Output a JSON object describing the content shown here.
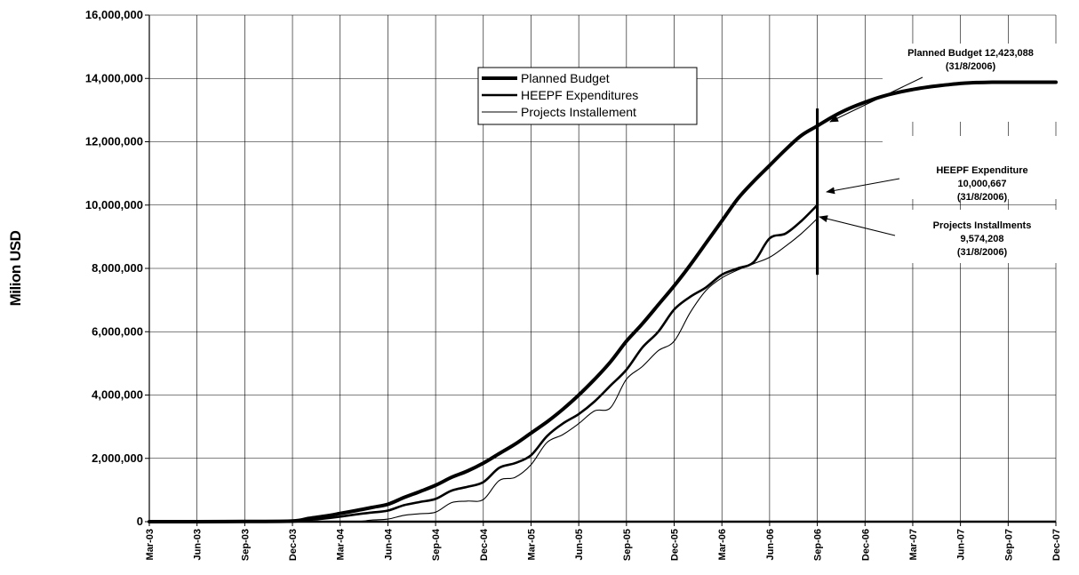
{
  "chart_data": {
    "type": "line",
    "title": "",
    "xlabel": "",
    "ylabel": "Milion USD",
    "ylim": [
      0,
      16000000
    ],
    "yticks": [
      "0",
      "2,000,000",
      "4,000,000",
      "6,000,000",
      "8,000,000",
      "10,000,000",
      "12,000,000",
      "14,000,000",
      "16,000,000"
    ],
    "x_tick_labels": [
      "Mar-03",
      "Jun-03",
      "Sep-03",
      "Dec-03",
      "Mar-04",
      "Jun-04",
      "Sep-04",
      "Dec-04",
      "Mar-05",
      "Jun-05",
      "Sep-05",
      "Dec-05",
      "Mar-06",
      "Jun-06",
      "Sep-06",
      "Dec-06",
      "Mar-07",
      "Jun-07",
      "Sep-07",
      "Dec-07"
    ],
    "grid": true,
    "legend_position": "top-center",
    "series": [
      {
        "name": "Planned Budget",
        "color": "#000000",
        "style": "thick",
        "points": [
          [
            "2003-03",
            0
          ],
          [
            "2003-06",
            0
          ],
          [
            "2003-09",
            5000
          ],
          [
            "2003-12",
            20000
          ],
          [
            "2004-01",
            100000
          ],
          [
            "2004-02",
            170000
          ],
          [
            "2004-03",
            260000
          ],
          [
            "2004-04",
            350000
          ],
          [
            "2004-05",
            450000
          ],
          [
            "2004-06",
            550000
          ],
          [
            "2004-07",
            760000
          ],
          [
            "2004-08",
            950000
          ],
          [
            "2004-09",
            1150000
          ],
          [
            "2004-10",
            1400000
          ],
          [
            "2004-11",
            1600000
          ],
          [
            "2004-12",
            1850000
          ],
          [
            "2005-01",
            2150000
          ],
          [
            "2005-02",
            2450000
          ],
          [
            "2005-03",
            2800000
          ],
          [
            "2005-04",
            3150000
          ],
          [
            "2005-05",
            3550000
          ],
          [
            "2005-06",
            4000000
          ],
          [
            "2005-07",
            4500000
          ],
          [
            "2005-08",
            5050000
          ],
          [
            "2005-09",
            5700000
          ],
          [
            "2005-10",
            6250000
          ],
          [
            "2005-11",
            6850000
          ],
          [
            "2005-12",
            7450000
          ],
          [
            "2006-01",
            8100000
          ],
          [
            "2006-02",
            8800000
          ],
          [
            "2006-03",
            9500000
          ],
          [
            "2006-04",
            10200000
          ],
          [
            "2006-05",
            10750000
          ],
          [
            "2006-06",
            11250000
          ],
          [
            "2006-07",
            11750000
          ],
          [
            "2006-08",
            12200000
          ],
          [
            "2006-09",
            12500000
          ],
          [
            "2006-10",
            12800000
          ],
          [
            "2006-11",
            13050000
          ],
          [
            "2006-12",
            13250000
          ],
          [
            "2007-01",
            13420000
          ],
          [
            "2007-02",
            13550000
          ],
          [
            "2007-03",
            13650000
          ],
          [
            "2007-04",
            13730000
          ],
          [
            "2007-05",
            13790000
          ],
          [
            "2007-06",
            13840000
          ],
          [
            "2007-07",
            13870000
          ],
          [
            "2007-08",
            13880000
          ],
          [
            "2007-09",
            13880000
          ],
          [
            "2007-10",
            13880000
          ],
          [
            "2007-11",
            13880000
          ],
          [
            "2007-12",
            13880000
          ]
        ]
      },
      {
        "name": "HEEPF Expenditures",
        "color": "#000000",
        "style": "medium",
        "points": [
          [
            "2003-03",
            0
          ],
          [
            "2003-06",
            0
          ],
          [
            "2003-09",
            0
          ],
          [
            "2003-12",
            0
          ],
          [
            "2004-01",
            50000
          ],
          [
            "2004-02",
            100000
          ],
          [
            "2004-03",
            160000
          ],
          [
            "2004-04",
            230000
          ],
          [
            "2004-05",
            290000
          ],
          [
            "2004-06",
            350000
          ],
          [
            "2004-07",
            520000
          ],
          [
            "2004-08",
            620000
          ],
          [
            "2004-09",
            720000
          ],
          [
            "2004-10",
            980000
          ],
          [
            "2004-11",
            1100000
          ],
          [
            "2004-12",
            1250000
          ],
          [
            "2005-01",
            1700000
          ],
          [
            "2005-02",
            1850000
          ],
          [
            "2005-03",
            2100000
          ],
          [
            "2005-04",
            2700000
          ],
          [
            "2005-05",
            3100000
          ],
          [
            "2005-06",
            3400000
          ],
          [
            "2005-07",
            3800000
          ],
          [
            "2005-08",
            4300000
          ],
          [
            "2005-09",
            4800000
          ],
          [
            "2005-10",
            5500000
          ],
          [
            "2005-11",
            6000000
          ],
          [
            "2005-12",
            6700000
          ],
          [
            "2006-01",
            7100000
          ],
          [
            "2006-02",
            7400000
          ],
          [
            "2006-03",
            7800000
          ],
          [
            "2006-04",
            8000000
          ],
          [
            "2006-05",
            8200000
          ],
          [
            "2006-06",
            8950000
          ],
          [
            "2006-07",
            9100000
          ],
          [
            "2006-08",
            9500000
          ],
          [
            "2006-09",
            10000667
          ]
        ]
      },
      {
        "name": "Projects Installement",
        "color": "#000000",
        "style": "thin",
        "points": [
          [
            "2003-03",
            0
          ],
          [
            "2003-06",
            0
          ],
          [
            "2003-09",
            0
          ],
          [
            "2003-12",
            0
          ],
          [
            "2004-01",
            0
          ],
          [
            "2004-02",
            0
          ],
          [
            "2004-03",
            0
          ],
          [
            "2004-04",
            0
          ],
          [
            "2004-05",
            50000
          ],
          [
            "2004-06",
            80000
          ],
          [
            "2004-07",
            200000
          ],
          [
            "2004-08",
            250000
          ],
          [
            "2004-09",
            300000
          ],
          [
            "2004-10",
            600000
          ],
          [
            "2004-11",
            650000
          ],
          [
            "2004-12",
            700000
          ],
          [
            "2005-01",
            1300000
          ],
          [
            "2005-02",
            1400000
          ],
          [
            "2005-03",
            1800000
          ],
          [
            "2005-04",
            2500000
          ],
          [
            "2005-05",
            2750000
          ],
          [
            "2005-06",
            3100000
          ],
          [
            "2005-07",
            3500000
          ],
          [
            "2005-08",
            3600000
          ],
          [
            "2005-09",
            4500000
          ],
          [
            "2005-10",
            4900000
          ],
          [
            "2005-11",
            5400000
          ],
          [
            "2005-12",
            5700000
          ],
          [
            "2006-01",
            6600000
          ],
          [
            "2006-02",
            7300000
          ],
          [
            "2006-03",
            7700000
          ],
          [
            "2006-04",
            7950000
          ],
          [
            "2006-05",
            8150000
          ],
          [
            "2006-06",
            8350000
          ],
          [
            "2006-07",
            8700000
          ],
          [
            "2006-08",
            9100000
          ],
          [
            "2006-09",
            9574208
          ]
        ]
      }
    ],
    "marker_date": "2006-09",
    "annotations": [
      {
        "lines": [
          "Planned Budget 12,423,088",
          "(31/8/2006)"
        ]
      },
      {
        "lines": [
          "HEEPF Expenditure",
          "10,000,667",
          "(31/8/2006)"
        ]
      },
      {
        "lines": [
          "Projects Installments",
          "9,574,208",
          "(31/8/2006)"
        ]
      }
    ]
  }
}
